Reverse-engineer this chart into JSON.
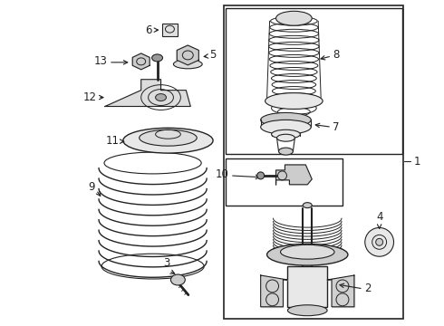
{
  "bg_color": "#ffffff",
  "line_color": "#222222",
  "label_color": "#000000",
  "figsize": [
    4.9,
    3.6
  ],
  "dpi": 100
}
